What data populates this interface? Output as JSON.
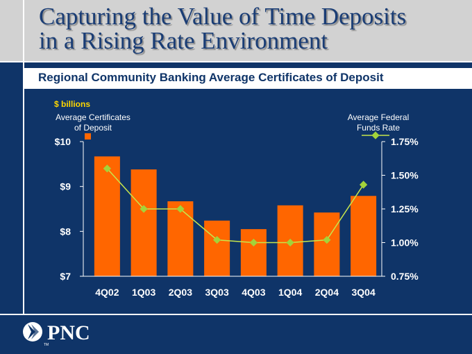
{
  "title": {
    "line1": "Capturing the Value of Time Deposits",
    "line2": "in a Rising Rate Environment"
  },
  "subtitle": "Regional Community Banking Average Certificates of Deposit",
  "logo": {
    "text": "PNC",
    "tm": "TM"
  },
  "colors": {
    "background": "#0f3468",
    "bar": "#ff6600",
    "line": "#c8e64b",
    "marker": "#a3d33a",
    "units": "#ffd700"
  },
  "chart_data": {
    "type": "bar",
    "units": "$ billions",
    "categories": [
      "4Q02",
      "1Q03",
      "2Q03",
      "3Q03",
      "4Q03",
      "1Q04",
      "2Q04",
      "3Q04"
    ],
    "series": [
      {
        "name": "Average Certificates of Deposit",
        "type": "bar",
        "axis": "left",
        "values": [
          9.67,
          9.38,
          8.67,
          8.24,
          8.05,
          8.58,
          8.42,
          8.79
        ]
      },
      {
        "name": "Average Federal Funds Rate",
        "type": "line",
        "axis": "right",
        "values": [
          1.55,
          1.25,
          1.25,
          1.02,
          1.0,
          1.0,
          1.02,
          1.43
        ]
      }
    ],
    "left_axis": {
      "label_line1": "Average Certificates",
      "label_line2": "of Deposit",
      "ticks": [
        "$10",
        "$9",
        "$8",
        "$7"
      ],
      "ylim": [
        7,
        10
      ]
    },
    "right_axis": {
      "label_line1": "Average Federal",
      "label_line2": "Funds Rate",
      "ticks": [
        "1.75%",
        "1.50%",
        "1.25%",
        "1.00%",
        "0.75%"
      ],
      "ylim": [
        0.75,
        1.75
      ]
    },
    "legend": "top",
    "grid": false
  }
}
